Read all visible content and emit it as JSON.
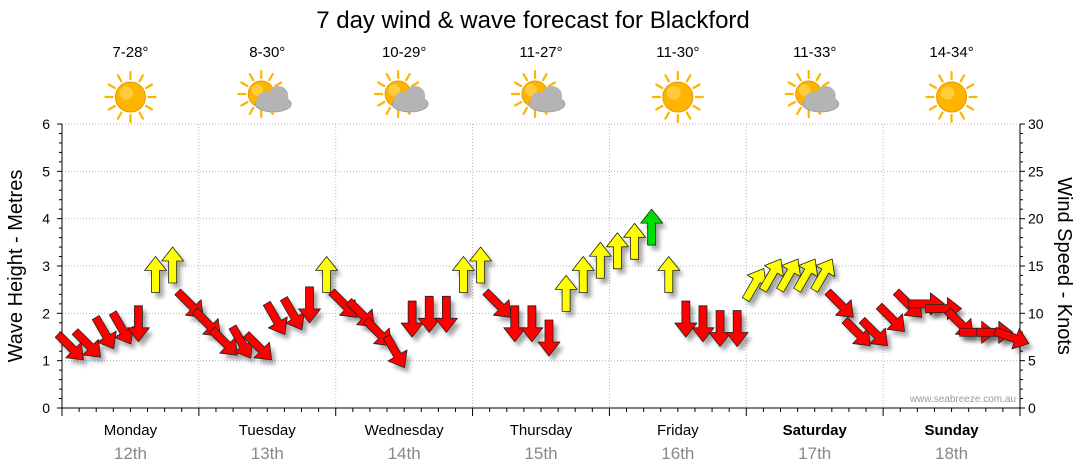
{
  "chart_data": {
    "type": "line",
    "title": "7 day wind & wave forecast for Blackford",
    "ylabel": "Wave Height - Metres",
    "ylabel_right": "Wind Speed - Knots",
    "ylim": [
      0,
      6
    ],
    "ylim_right": [
      0,
      30
    ],
    "yticks": [
      0,
      1,
      2,
      3,
      4,
      5,
      6
    ],
    "yticks_right": [
      0,
      5,
      10,
      15,
      20,
      25,
      30
    ],
    "grid": true,
    "watermark": "www.seabreeze.com.au",
    "days": [
      {
        "day": "Monday",
        "date": "12th",
        "temp": "7-28°",
        "icon": "sun-icon",
        "bold": false
      },
      {
        "day": "Tuesday",
        "date": "13th",
        "temp": "8-30°",
        "icon": "sun-cloud-icon",
        "bold": false
      },
      {
        "day": "Wednesday",
        "date": "14th",
        "temp": "10-29°",
        "icon": "sun-cloud-icon",
        "bold": false
      },
      {
        "day": "Thursday",
        "date": "15th",
        "temp": "11-27°",
        "icon": "sun-cloud-icon",
        "bold": false
      },
      {
        "day": "Friday",
        "date": "16th",
        "temp": "11-30°",
        "icon": "sun-icon",
        "bold": false
      },
      {
        "day": "Saturday",
        "date": "17th",
        "temp": "11-33°",
        "icon": "sun-cloud-icon",
        "bold": true
      },
      {
        "day": "Sunday",
        "date": "18th",
        "temp": "14-34°",
        "icon": "sun-icon",
        "bold": true
      }
    ],
    "colors": {
      "low": "#ff0000",
      "mid": "#ffff00",
      "high": "#00dd00",
      "sun": "#ffb400",
      "cloud": "#b4b4b4"
    },
    "series": [
      {
        "unit": "knots",
        "x_hours": [
          0,
          3,
          6,
          9,
          12,
          15,
          18,
          21,
          24,
          27,
          30,
          33,
          36,
          39,
          42,
          45,
          48,
          51,
          54,
          57,
          60,
          63,
          66,
          69,
          72,
          75,
          78,
          81,
          84,
          87,
          90,
          93,
          96,
          99,
          102,
          105,
          108,
          111,
          114,
          117,
          120,
          123,
          126,
          129,
          132,
          135,
          138,
          141,
          144,
          147,
          150,
          153,
          156,
          159,
          162,
          165
        ],
        "values": [
          6.5,
          6.8,
          8,
          8.5,
          9,
          14,
          15,
          11,
          9,
          7,
          7,
          6.5,
          9.5,
          10,
          11,
          14,
          11,
          10,
          8,
          6,
          9.5,
          10,
          10,
          14,
          15,
          11,
          9,
          9,
          7.5,
          12,
          14,
          15.5,
          16.5,
          17.5,
          19,
          14,
          9.5,
          9,
          8.5,
          8.5,
          13,
          14,
          14,
          14,
          14,
          11,
          8,
          8,
          9.5,
          11,
          11,
          10.5,
          9,
          8,
          8,
          7.5
        ],
        "directions_deg": [
          135,
          135,
          150,
          150,
          180,
          0,
          0,
          135,
          135,
          135,
          150,
          135,
          150,
          150,
          180,
          0,
          135,
          135,
          135,
          150,
          180,
          180,
          180,
          0,
          0,
          135,
          180,
          180,
          180,
          0,
          0,
          0,
          0,
          0,
          0,
          0,
          180,
          180,
          180,
          180,
          30,
          30,
          30,
          30,
          30,
          135,
          135,
          135,
          135,
          135,
          90,
          90,
          135,
          90,
          90,
          110
        ]
      }
    ]
  }
}
